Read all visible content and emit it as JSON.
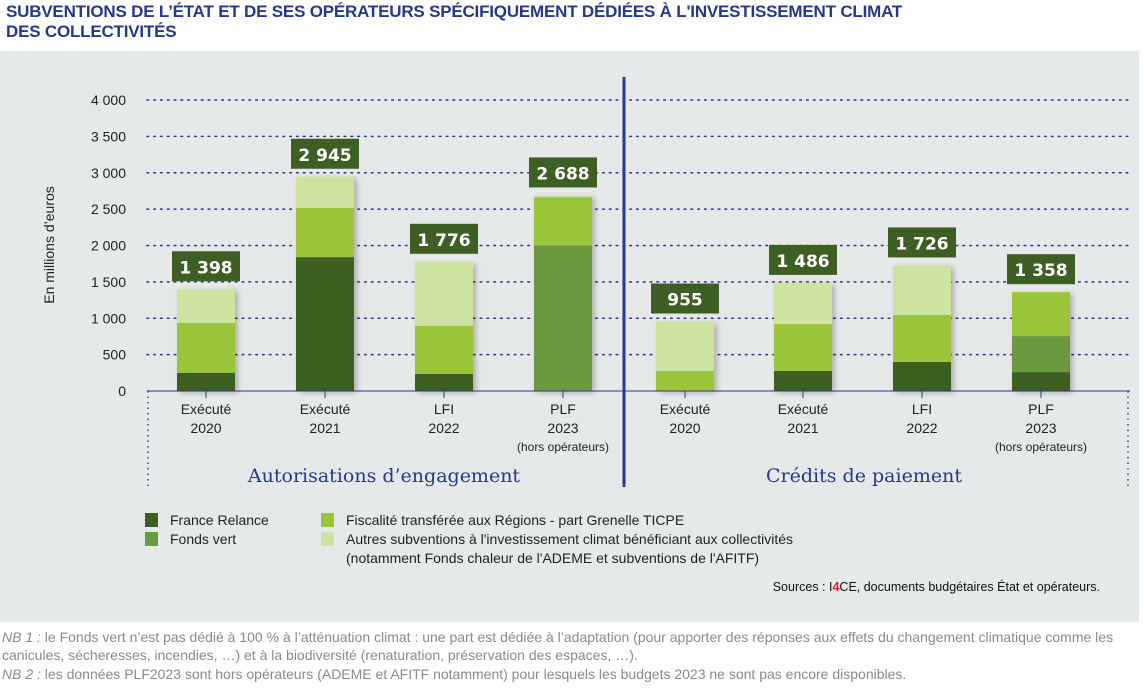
{
  "title": {
    "line1": "SUBVENTIONS DE L’ÉTAT ET DE SES OPÉRATEURS SPÉCIFIQUEMENT DÉDIÉES À L'INVESTISSEMENT CLIMAT",
    "line2": "DES COLLECTIVITÉS"
  },
  "colors": {
    "france_relance": "#3e5f24",
    "fonds_vert": "#6a9a3e",
    "fiscalite": "#9bc63a",
    "autres": "#cde4a0",
    "label_bg": "#3e5f24",
    "accent": "#25388a",
    "panel": "#e6e9e9"
  },
  "chart_data": {
    "type": "bar",
    "stacked": true,
    "title": "SUBVENTIONS DE L’ÉTAT ET DE SES OPÉRATEURS SPÉCIFIQUEMENT DÉDIÉES À L'INVESTISSEMENT CLIMAT DES COLLECTIVITÉS",
    "ylabel": "En millions d’euros",
    "xlabel": "",
    "ylim": [
      0,
      4000
    ],
    "yticks": [
      0,
      500,
      1000,
      1500,
      2000,
      2500,
      3000,
      3500,
      4000
    ],
    "ytick_labels": [
      "0",
      "500",
      "1 000",
      "1 500",
      "2 000",
      "2 500",
      "3 000",
      "3 500",
      "4 000"
    ],
    "grid": true,
    "groups": [
      {
        "label": "Autorisations d’engagement",
        "categories": [
          0,
          1,
          2,
          3
        ]
      },
      {
        "label": "Crédits de paiement",
        "categories": [
          4,
          5,
          6,
          7
        ]
      }
    ],
    "categories": [
      {
        "line1": "Exécuté",
        "line2": "2020",
        "line3": ""
      },
      {
        "line1": "Exécuté",
        "line2": "2021",
        "line3": ""
      },
      {
        "line1": "LFI",
        "line2": "2022",
        "line3": ""
      },
      {
        "line1": "PLF",
        "line2": "2023",
        "line3": "(hors opérateurs)"
      },
      {
        "line1": "Exécuté",
        "line2": "2020",
        "line3": ""
      },
      {
        "line1": "Exécuté",
        "line2": "2021",
        "line3": ""
      },
      {
        "line1": "LFI",
        "line2": "2022",
        "line3": ""
      },
      {
        "line1": "PLF",
        "line2": "2023",
        "line3": "(hors opérateurs)"
      }
    ],
    "totals": [
      1398,
      2945,
      1776,
      2688,
      955,
      1486,
      1726,
      1358
    ],
    "total_labels": [
      "1 398",
      "2 945",
      "1 776",
      "2 688",
      "955",
      "1 486",
      "1 726",
      "1 358"
    ],
    "series": [
      {
        "name": "France Relance",
        "key": "france_relance",
        "values": [
          250,
          1840,
          235,
          0,
          0,
          275,
          400,
          260
        ]
      },
      {
        "name": "Fonds vert",
        "key": "fonds_vert",
        "values": [
          0,
          0,
          0,
          2000,
          0,
          0,
          0,
          495
        ]
      },
      {
        "name": "Fiscalité transférée aux Régions - part Grenelle TICPE",
        "key": "fiscalite",
        "values": [
          685,
          675,
          660,
          665,
          275,
          645,
          645,
          603
        ]
      },
      {
        "name": "Autres subventions à l'investissement climat bénéficiant aux collectivités (notamment Fonds chaleur de l'ADEME et subventions de l'AFITF)",
        "key": "autres",
        "values": [
          463,
          430,
          881,
          23,
          680,
          566,
          681,
          0
        ]
      }
    ],
    "legend_position": "bottom"
  },
  "legend": {
    "france_relance": "France Relance",
    "fonds_vert": "Fonds vert",
    "fiscalite": "Fiscalité transférée aux Régions - part Grenelle TICPE",
    "autres_line1": "Autres subventions à l'investissement climat bénéficiant aux collectivités",
    "autres_line2": "(notamment Fonds chaleur de l'ADEME et subventions de l'AFITF)"
  },
  "sources": {
    "prefix": "Sources : I",
    "highlight": "4",
    "suffix": "CE, documents budgétaires État et opérateurs."
  },
  "notes": [
    {
      "label": "NB 1 :",
      "text": " le Fonds vert n’est pas dédié à 100 % à l’atténuation climat : une part est dédiée à l’adaptation (pour apporter des réponses aux effets du changement climatique comme les canicules, sécheresses, incendies, …) et à la biodiversité (renaturation, préservation des espaces, …)."
    },
    {
      "label": "NB 2 :",
      "text": " les données PLF2023 sont hors opérateurs (ADEME et AFITF notamment) pour lesquels les budgets 2023 ne sont pas encore disponibles."
    }
  ]
}
